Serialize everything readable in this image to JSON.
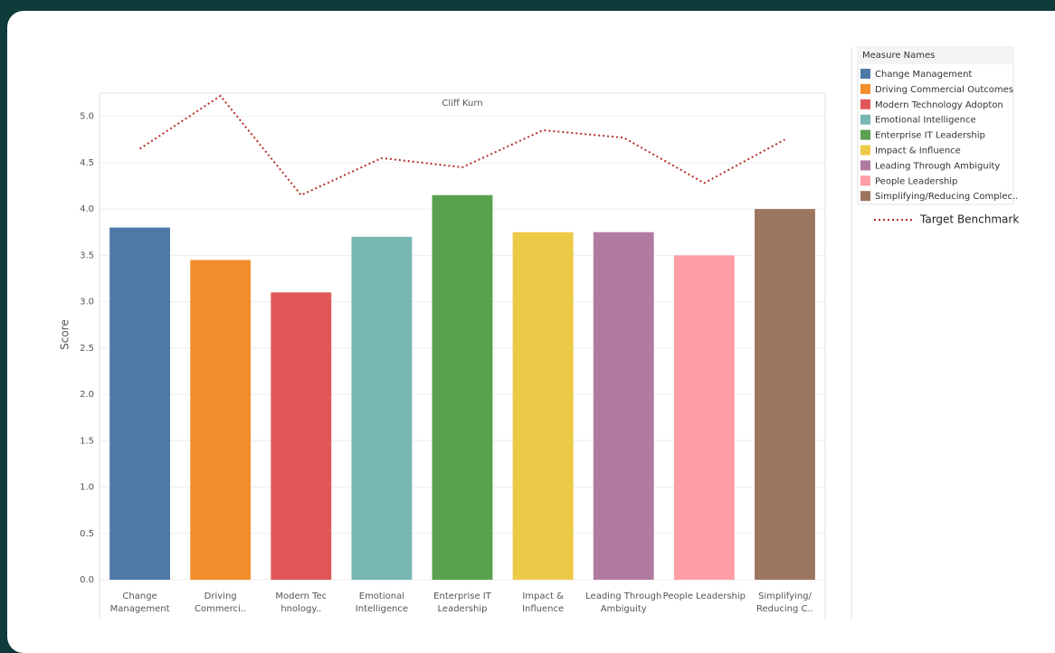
{
  "chart_data": {
    "type": "bar",
    "header": "Cliff Kurn",
    "y_label": "Score",
    "categories": [
      [
        "Change",
        "Management"
      ],
      [
        "Driving",
        "Commerci.."
      ],
      [
        "Modern Tec",
        "hnology.."
      ],
      [
        "Emotional",
        "Intelligence"
      ],
      [
        "Enterprise IT",
        "Leadership"
      ],
      [
        "Impact &",
        "Influence"
      ],
      [
        "Leading Through",
        "Ambiguity"
      ],
      [
        "People Leadership"
      ],
      [
        "Simplifying/",
        "Reducing C.."
      ]
    ],
    "values": [
      3.8,
      3.45,
      3.1,
      3.7,
      4.15,
      3.75,
      3.75,
      3.5,
      4.0
    ],
    "colors": [
      "#4e79a7",
      "#f28e2b",
      "#e15759",
      "#76b7b2",
      "#59a14f",
      "#edc948",
      "#b07aa1",
      "#ff9da7",
      "#9c755f"
    ],
    "series": [
      {
        "name": "Target Benchmark",
        "color": "#b5302a",
        "values": [
          4.65,
          5.22,
          4.15,
          4.55,
          4.45,
          4.85,
          4.77,
          4.28,
          4.75
        ]
      }
    ],
    "ylim": [
      0,
      5.25
    ],
    "yticks": [
      {
        "value": 0,
        "label": "0.0"
      },
      {
        "value": 0.5,
        "label": "0.5"
      },
      {
        "value": 1,
        "label": "1.0"
      },
      {
        "value": 1.5,
        "label": "1.5"
      },
      {
        "value": 2,
        "label": "2.0"
      },
      {
        "value": 2.5,
        "label": "2.5"
      },
      {
        "value": 3,
        "label": "3.0"
      },
      {
        "value": 3.5,
        "label": "3.5"
      },
      {
        "value": 4,
        "label": "4.0"
      },
      {
        "value": 4.5,
        "label": "4.5"
      },
      {
        "value": 5,
        "label": "5.0"
      }
    ],
    "grid": true,
    "legend": {
      "title": "Measure Names",
      "items": [
        "Change Management",
        "Driving Commercial Outcomes",
        "Modern Technology Adopton",
        "Emotional Intelligence",
        "Enterprise IT Leadership",
        "Impact & Influence",
        "Leading Through Ambiguity",
        "People Leadership",
        "Simplifying/Reducing Complec.."
      ]
    }
  }
}
